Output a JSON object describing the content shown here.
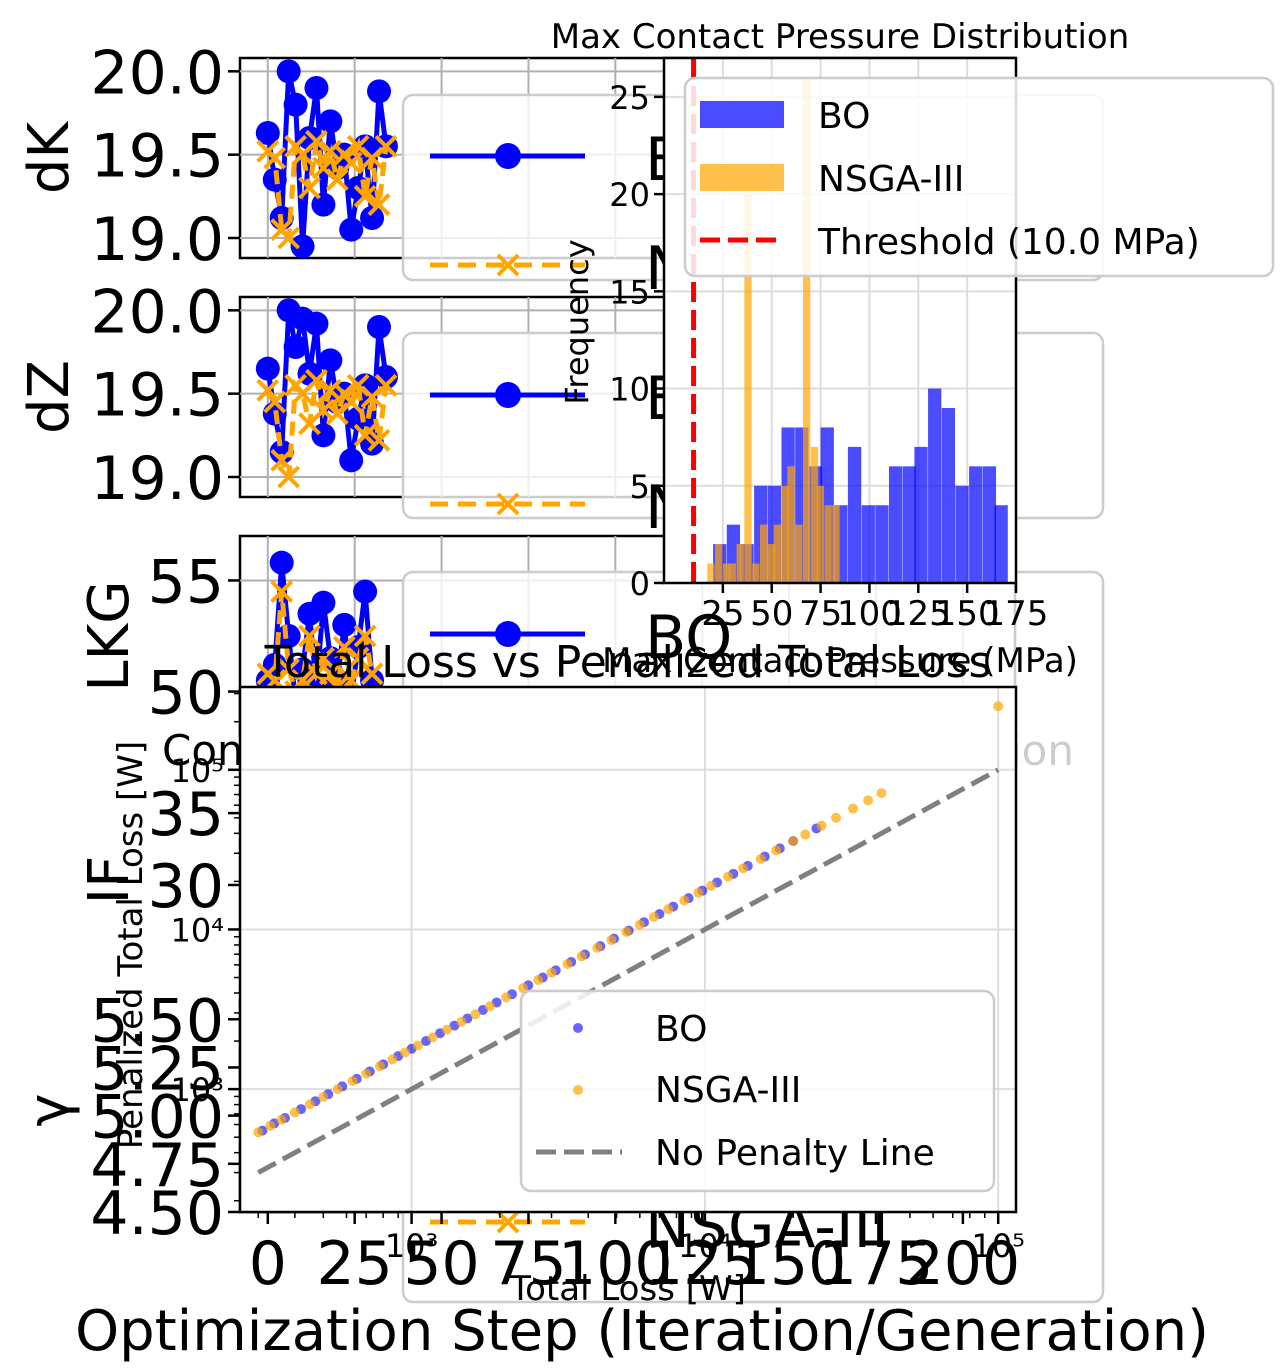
{
  "colors": {
    "bo": "#0000ff",
    "nsga": "#ffa500",
    "threshold": "#ff0000",
    "ref_line": "#808080",
    "grid": "#cccccc"
  },
  "chart_data": [
    {
      "id": "convergence",
      "type": "line",
      "xlabel": "Optimization Step (Iteration/Generation)",
      "x_ticks": [
        "0",
        "25",
        "50",
        "75",
        "100",
        "125",
        "150",
        "175",
        "200"
      ],
      "xlim": [
        -8,
        215
      ],
      "legend_labels": [
        "BO",
        "NSGA-III"
      ],
      "partial_title": "Con",
      "partial_title_end": "ion",
      "panels": [
        {
          "name": "dK",
          "ylabel": "dK",
          "ylim": [
            18.88,
            20.08
          ],
          "ticks": [
            "19.0",
            "19.5",
            "20.0"
          ],
          "tick_values": [
            19.0,
            19.5,
            20.0
          ],
          "bo": {
            "x": [
              0,
              2,
              4,
              6,
              8,
              10,
              12,
              14,
              16,
              18,
              20,
              22,
              24,
              26,
              28,
              30,
              32,
              34
            ],
            "y": [
              19.63,
              19.35,
              19.12,
              20.0,
              19.8,
              18.95,
              19.6,
              19.9,
              19.2,
              19.7,
              19.42,
              19.5,
              19.05,
              19.3,
              19.55,
              19.12,
              19.88,
              19.55
            ]
          },
          "nsga": {
            "x": [
              0,
              2,
              4,
              6,
              8,
              10,
              12,
              14,
              16,
              18,
              20,
              22,
              24,
              26,
              28,
              30,
              32,
              34
            ],
            "y": [
              19.52,
              19.48,
              19.05,
              19.0,
              19.55,
              19.5,
              19.3,
              19.58,
              19.42,
              19.52,
              19.35,
              19.5,
              19.45,
              19.55,
              19.25,
              19.48,
              19.2,
              19.55
            ]
          }
        },
        {
          "name": "dZ",
          "ylabel": "dZ",
          "ylim": [
            18.88,
            20.08
          ],
          "ticks": [
            "19.0",
            "19.5",
            "20.0"
          ],
          "tick_values": [
            19.0,
            19.5,
            20.0
          ],
          "bo": {
            "x": [
              0,
              2,
              4,
              6,
              8,
              10,
              12,
              14,
              16,
              18,
              20,
              22,
              24,
              26,
              28,
              30,
              32,
              34
            ],
            "y": [
              19.65,
              19.38,
              19.15,
              20.0,
              19.78,
              19.95,
              19.62,
              19.92,
              19.25,
              19.7,
              19.45,
              19.5,
              19.1,
              19.35,
              19.55,
              19.2,
              19.9,
              19.6
            ]
          },
          "nsga": {
            "x": [
              0,
              2,
              4,
              6,
              8,
              10,
              12,
              14,
              16,
              18,
              20,
              22,
              24,
              26,
              28,
              30,
              32,
              34
            ],
            "y": [
              19.52,
              19.45,
              19.1,
              19.0,
              19.55,
              19.5,
              19.32,
              19.58,
              19.4,
              19.52,
              19.38,
              19.5,
              19.45,
              19.55,
              19.25,
              19.48,
              19.22,
              19.55
            ]
          }
        },
        {
          "name": "LKG",
          "ylabel": "LKG",
          "ylim": [
            48,
            57
          ],
          "ticks": [
            "50",
            "55"
          ],
          "tick_values": [
            50,
            55
          ],
          "bo": {
            "x": [
              0,
              2,
              4,
              6,
              8,
              10,
              12,
              14,
              16,
              18,
              20,
              22,
              24,
              26,
              28,
              30
            ],
            "y": [
              50.5,
              51.2,
              55.8,
              52.5,
              49.5,
              51,
              53.5,
              50.2,
              54,
              51.5,
              50.5,
              53,
              49.8,
              52,
              54.5,
              50.5
            ]
          },
          "nsga": {
            "x": [
              0,
              2,
              4,
              6,
              8,
              10,
              12,
              14,
              16,
              18,
              20,
              22,
              24,
              26,
              28,
              30
            ],
            "y": [
              50.8,
              50.5,
              54.5,
              51,
              50,
              50.5,
              52.5,
              50.8,
              51.5,
              50.8,
              50.2,
              52,
              50.5,
              51.5,
              52.5,
              50.8
            ]
          }
        },
        {
          "name": "IF",
          "ylabel": "IF",
          "ylim": [
            22,
            38
          ],
          "ticks": [
            "30",
            "35"
          ],
          "tick_values": [
            30,
            35
          ],
          "bo": {
            "x": [],
            "y": []
          },
          "nsga": {
            "x": [],
            "y": []
          }
        },
        {
          "name": "gamma",
          "ylabel": "γ",
          "ylim": [
            4.5,
            5.6
          ],
          "ticks": [
            "4.50",
            "4.75",
            "5.00",
            "5.25",
            "5.50"
          ],
          "tick_values": [
            4.5,
            4.75,
            5.0,
            5.25,
            5.5
          ],
          "bo": {
            "x": [],
            "y": []
          },
          "nsga": {
            "x": [],
            "y": []
          }
        }
      ]
    },
    {
      "id": "histogram",
      "type": "bar",
      "title": "Max Contact Pressure Distribution",
      "xlabel": "Max Contact Pressure (MPa)",
      "ylabel": "Frequency",
      "xlim": [
        0,
        175
      ],
      "ylim": [
        0,
        27
      ],
      "x_ticks": [
        "25",
        "50",
        "75",
        "100",
        "125",
        "150",
        "175"
      ],
      "x_tick_values": [
        25,
        50,
        75,
        100,
        125,
        150,
        175
      ],
      "y_ticks": [
        "0",
        "5",
        "10",
        "15",
        "20",
        "25"
      ],
      "y_tick_values": [
        0,
        5,
        10,
        15,
        20,
        25
      ],
      "bin_width": 6.8,
      "series": [
        {
          "name": "BO",
          "bin_starts": [
            20,
            27,
            34,
            41,
            48,
            55,
            62,
            69,
            75,
            82,
            89,
            96,
            103,
            110,
            117,
            123,
            130,
            137,
            144,
            151,
            158,
            164
          ],
          "counts": [
            2,
            3,
            2,
            5,
            5,
            8,
            8,
            6,
            8,
            4,
            7,
            4,
            4,
            6,
            6,
            7,
            10,
            9,
            5,
            6,
            6,
            4
          ]
        },
        {
          "name": "NSGA-III",
          "bin_starts": [
            17,
            21,
            25,
            28,
            32,
            36,
            40,
            44,
            48,
            51,
            55,
            58,
            62,
            66,
            70,
            73,
            77,
            81
          ],
          "counts": [
            1,
            2,
            1,
            1,
            2,
            20,
            1,
            3,
            2,
            3,
            5,
            6,
            3,
            26,
            7,
            5,
            4,
            4
          ]
        }
      ],
      "threshold": {
        "label": "Threshold (10.0 MPa)",
        "value": 10.0
      },
      "legend_position": "upper right"
    },
    {
      "id": "scatter",
      "type": "scatter",
      "title": "Total Loss vs Penalized Total Loss",
      "xlabel": "Total Loss [W]",
      "ylabel": "Penalized Total Loss [W]",
      "xscale": "log",
      "yscale": "log",
      "xlim": [
        260,
        115000
      ],
      "ylim": [
        170,
        330000
      ],
      "x_ticks": [
        "10³",
        "10⁴",
        "10⁵"
      ],
      "x_tick_values": [
        1000,
        10000,
        100000
      ],
      "y_ticks": [
        "10³",
        "10⁴",
        "10⁵"
      ],
      "y_tick_values": [
        1000,
        10000,
        100000
      ],
      "legend_labels": [
        "BO",
        "NSGA-III",
        "No Penalty Line"
      ],
      "legend_position": "lower right",
      "no_penalty_line": {
        "x": [
          300,
          100000
        ],
        "y": [
          300,
          100000
        ]
      },
      "bo": {
        "x": [
          310,
          340,
          370,
          420,
          470,
          520,
          580,
          650,
          720,
          800,
          900,
          1000,
          1120,
          1250,
          1400,
          1550,
          1750,
          1950,
          2200,
          2500,
          2800,
          3100,
          3500,
          3900,
          4400,
          4900,
          5500,
          6200,
          7000,
          7800,
          8800,
          9800,
          11000,
          12500,
          14000,
          16000,
          18000,
          20000,
          24000
        ],
        "y": [
          550,
          610,
          660,
          750,
          840,
          930,
          1040,
          1160,
          1290,
          1430,
          1610,
          1790,
          2000,
          2240,
          2500,
          2770,
          3130,
          3490,
          3930,
          4470,
          5000,
          5540,
          6260,
          6970,
          7860,
          8760,
          9830,
          11100,
          12500,
          13900,
          15700,
          17500,
          19700,
          22300,
          25000,
          28600,
          32200,
          35800,
          42900
        ]
      },
      "nsga": {
        "x": [
          300,
          330,
          360,
          400,
          450,
          500,
          560,
          630,
          700,
          780,
          860,
          950,
          1050,
          1180,
          1320,
          1480,
          1650,
          1850,
          2100,
          2400,
          2700,
          3000,
          3400,
          3800,
          4300,
          4800,
          5400,
          6000,
          6700,
          7500,
          8500,
          9500,
          10500,
          12000,
          13500,
          15500,
          17500,
          20000,
          22000,
          25000,
          28000,
          32000,
          36000,
          40000,
          100000
        ],
        "y": [
          536,
          590,
          643,
          715,
          804,
          893,
          1000,
          1125,
          1250,
          1394,
          1536,
          1697,
          1876,
          2108,
          2358,
          2644,
          2948,
          3305,
          3752,
          4288,
          4824,
          5360,
          6075,
          6790,
          7683,
          8577,
          9649,
          10720,
          11972,
          13401,
          15188,
          16975,
          18762,
          21442,
          24122,
          27696,
          31270,
          35737,
          39311,
          44672,
          50032,
          57179,
          64326,
          71474,
          250000
        ]
      }
    }
  ]
}
